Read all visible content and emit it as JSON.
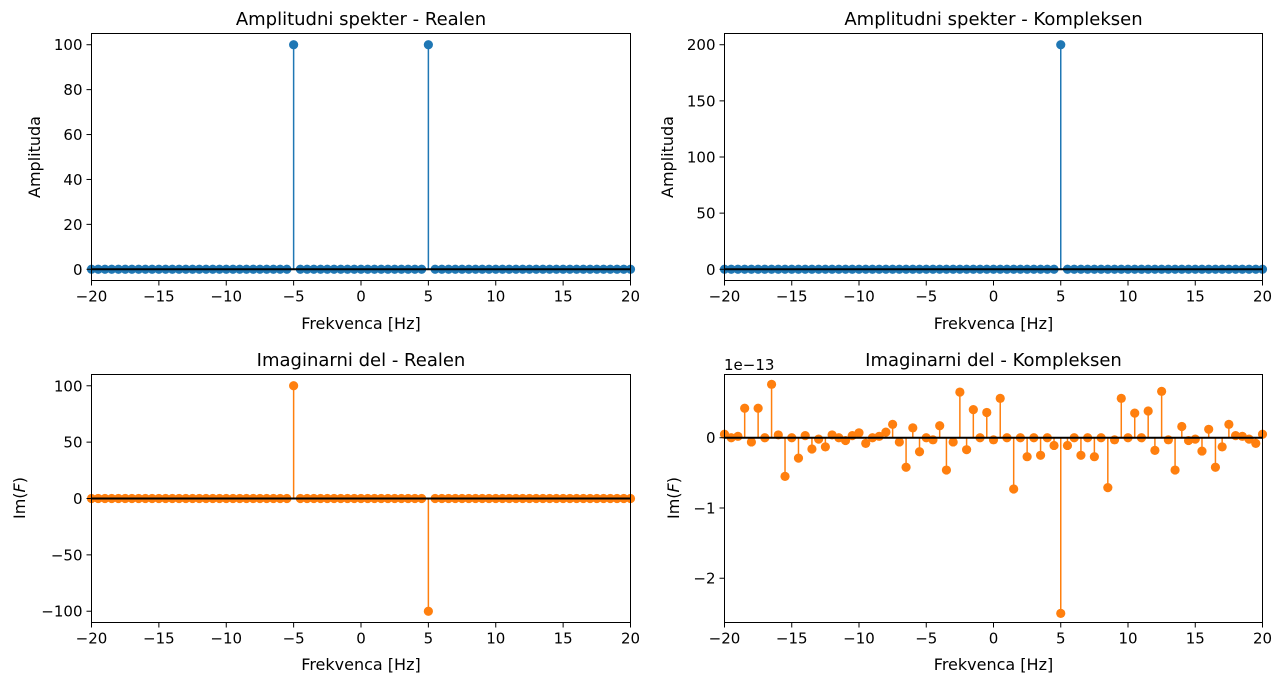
{
  "figure": {
    "background": "#ffffff"
  },
  "chart_data": [
    {
      "type": "stem",
      "title": "Amplitudni spekter - Realen",
      "xlabel": "Frekvenca [Hz]",
      "ylabel": "Amplituda",
      "xlim": [
        -20,
        20
      ],
      "ylim": [
        -5,
        105
      ],
      "xticks": [
        -20,
        -15,
        -10,
        -5,
        0,
        5,
        10,
        15,
        20
      ],
      "xtick_labels": [
        "−20",
        "−15",
        "−10",
        "−5",
        "0",
        "5",
        "10",
        "15",
        "20"
      ],
      "yticks": [
        0,
        20,
        40,
        60,
        80,
        100
      ],
      "ytick_labels": [
        "0",
        "20",
        "40",
        "60",
        "80",
        "100"
      ],
      "color": "#1f77b4",
      "baseline_color": "#000000",
      "frequency_step_hz": 0.5,
      "baseline_value": 0,
      "peaks": [
        {
          "x": -5,
          "y": 100
        },
        {
          "x": 5,
          "y": 100
        }
      ]
    },
    {
      "type": "stem",
      "title": "Amplitudni spekter - Kompleksen",
      "xlabel": "Frekvenca [Hz]",
      "ylabel": "Amplituda",
      "xlim": [
        -20,
        20
      ],
      "ylim": [
        -10,
        210
      ],
      "xticks": [
        -20,
        -15,
        -10,
        -5,
        0,
        5,
        10,
        15,
        20
      ],
      "xtick_labels": [
        "−20",
        "−15",
        "−10",
        "−5",
        "0",
        "5",
        "10",
        "15",
        "20"
      ],
      "yticks": [
        0,
        50,
        100,
        150,
        200
      ],
      "ytick_labels": [
        "0",
        "50",
        "100",
        "150",
        "200"
      ],
      "color": "#1f77b4",
      "baseline_color": "#000000",
      "frequency_step_hz": 0.5,
      "baseline_value": 0,
      "peaks": [
        {
          "x": 5,
          "y": 200
        }
      ]
    },
    {
      "type": "stem",
      "title": "Imaginarni del - Realen",
      "xlabel": "Frekvenca [Hz]",
      "ylabel": "Im(F)",
      "ylabel_parts": {
        "pre": "Im(",
        "var": "F",
        "post": ")"
      },
      "xlim": [
        -20,
        20
      ],
      "ylim": [
        -110,
        110
      ],
      "xticks": [
        -20,
        -15,
        -10,
        -5,
        0,
        5,
        10,
        15,
        20
      ],
      "xtick_labels": [
        "−20",
        "−15",
        "−10",
        "−5",
        "0",
        "5",
        "10",
        "15",
        "20"
      ],
      "yticks": [
        -100,
        -50,
        0,
        50,
        100
      ],
      "ytick_labels": [
        "−100",
        "−50",
        "0",
        "50",
        "100"
      ],
      "color": "#ff7f0e",
      "baseline_color": "#000000",
      "frequency_step_hz": 0.5,
      "baseline_value": 0,
      "peaks": [
        {
          "x": -5,
          "y": 100
        },
        {
          "x": 5,
          "y": -100
        }
      ]
    },
    {
      "type": "stem",
      "title": "Imaginarni del - Kompleksen",
      "xlabel": "Frekvenca [Hz]",
      "ylabel": "Im(F)",
      "ylabel_parts": {
        "pre": "Im(",
        "var": "F",
        "post": ")"
      },
      "offset_text": "1e−13",
      "xlim": [
        -20,
        20
      ],
      "ylim": [
        -2.63,
        0.9
      ],
      "xticks": [
        -20,
        -15,
        -10,
        -5,
        0,
        5,
        10,
        15,
        20
      ],
      "xtick_labels": [
        "−20",
        "−15",
        "−10",
        "−5",
        "0",
        "5",
        "10",
        "15",
        "20"
      ],
      "yticks": [
        -2,
        -1,
        0
      ],
      "ytick_labels": [
        "−2",
        "−1",
        "0"
      ],
      "color": "#ff7f0e",
      "baseline_color": "#000000",
      "x": [
        -20,
        -19.5,
        -19,
        -18.5,
        -18,
        -17.5,
        -17,
        -16.5,
        -16,
        -15.5,
        -15,
        -14.5,
        -14,
        -13.5,
        -13,
        -12.5,
        -12,
        -11.5,
        -11,
        -10.5,
        -10,
        -9.5,
        -9,
        -8.5,
        -8,
        -7.5,
        -7,
        -6.5,
        -6,
        -5.5,
        -5,
        -4.5,
        -4,
        -3.5,
        -3,
        -2.5,
        -2,
        -1.5,
        -1,
        -0.5,
        0,
        0.5,
        1,
        1.5,
        2,
        2.5,
        3,
        3.5,
        4,
        4.5,
        5,
        5.5,
        6,
        6.5,
        7,
        7.5,
        8,
        8.5,
        9,
        9.5,
        10,
        10.5,
        11,
        11.5,
        12,
        12.5,
        13,
        13.5,
        14,
        14.5,
        15,
        15.5,
        16,
        16.5,
        17,
        17.5,
        18,
        18.5,
        19,
        19.5,
        20
      ],
      "y": [
        0.05,
        0.0,
        0.02,
        0.42,
        -0.06,
        0.42,
        0.0,
        0.76,
        0.04,
        -0.55,
        0.0,
        -0.29,
        0.03,
        -0.16,
        -0.02,
        -0.13,
        0.04,
        0.0,
        -0.04,
        0.03,
        0.07,
        -0.08,
        0.0,
        0.02,
        0.08,
        0.19,
        -0.06,
        -0.42,
        0.14,
        -0.2,
        0.0,
        -0.03,
        0.17,
        -0.46,
        -0.06,
        0.65,
        -0.17,
        0.4,
        0.0,
        0.36,
        -0.03,
        0.56,
        0.0,
        -0.73,
        0.0,
        -0.27,
        0.0,
        -0.25,
        0.0,
        -0.11,
        -2.5,
        -0.11,
        0.0,
        -0.25,
        0.0,
        -0.27,
        0.0,
        -0.71,
        -0.03,
        0.56,
        0.0,
        0.35,
        0.0,
        0.38,
        -0.18,
        0.66,
        -0.03,
        -0.46,
        0.16,
        -0.04,
        -0.02,
        -0.19,
        0.12,
        -0.42,
        -0.13,
        0.19,
        0.03,
        0.02,
        -0.02,
        -0.08,
        0.05
      ]
    }
  ]
}
